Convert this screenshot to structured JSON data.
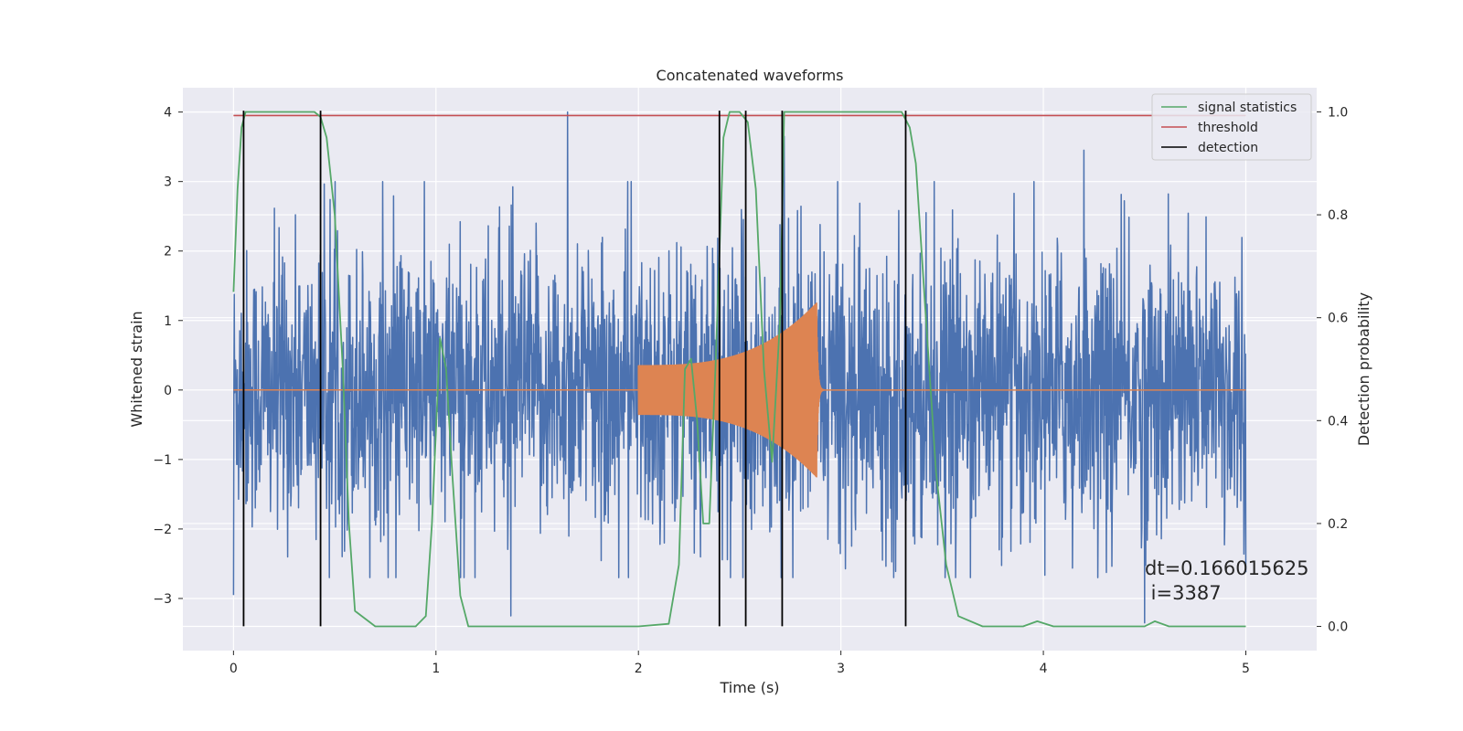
{
  "chart_data": {
    "type": "line",
    "title": "Concatenated waveforms",
    "xlabel": "Time (s)",
    "ylabel": "Whitened strain",
    "y2label": "Detection probability",
    "xlim": [
      -0.25,
      5.35
    ],
    "ylim": [
      -3.75,
      4.35
    ],
    "y2lim": [
      -0.047,
      1.047
    ],
    "xticks": [
      0,
      1,
      2,
      3,
      4,
      5
    ],
    "xtick_labels": [
      "0",
      "1",
      "2",
      "3",
      "4",
      "5"
    ],
    "yticks": [
      -3,
      -2,
      -1,
      0,
      1,
      2,
      3,
      4
    ],
    "ytick_labels": [
      "−3",
      "−2",
      "−1",
      "0",
      "1",
      "2",
      "3",
      "4"
    ],
    "y2ticks": [
      0.0,
      0.2,
      0.4,
      0.6,
      0.8,
      1.0
    ],
    "y2tick_labels": [
      "0.0",
      "0.2",
      "0.4",
      "0.6",
      "0.8",
      "1.0"
    ],
    "grid": true,
    "legend_position": "top-right",
    "colors": {
      "background": "#eaeaf2",
      "strain": "#4c72b0",
      "injection": "#dd8452",
      "signal_statistics": "#55a868",
      "threshold": "#c44e52",
      "detection": "#000000"
    },
    "series": [
      {
        "name": "signal statistics",
        "axis": "right",
        "color": "#55a868",
        "x": [
          0.0,
          0.02,
          0.04,
          0.06,
          0.08,
          0.1,
          0.2,
          0.3,
          0.4,
          0.43,
          0.46,
          0.5,
          0.54,
          0.57,
          0.6,
          0.7,
          0.9,
          0.95,
          0.98,
          1.02,
          1.05,
          1.08,
          1.12,
          1.16,
          1.2,
          1.4,
          1.6,
          1.8,
          2.0,
          2.15,
          2.2,
          2.23,
          2.26,
          2.29,
          2.32,
          2.35,
          2.38,
          2.42,
          2.45,
          2.5,
          2.54,
          2.58,
          2.62,
          2.66,
          2.7,
          2.72,
          2.78,
          3.0,
          3.2,
          3.3,
          3.34,
          3.37,
          3.42,
          3.47,
          3.52,
          3.58,
          3.7,
          3.9,
          3.97,
          4.05,
          4.2,
          4.4,
          4.5,
          4.55,
          4.62,
          4.8,
          5.0
        ],
        "y": [
          0.65,
          0.85,
          0.97,
          1.0,
          1.0,
          1.0,
          1.0,
          1.0,
          1.0,
          0.99,
          0.95,
          0.8,
          0.5,
          0.2,
          0.03,
          0.0,
          0.0,
          0.02,
          0.2,
          0.56,
          0.5,
          0.3,
          0.06,
          0.0,
          0.0,
          0.0,
          0.0,
          0.0,
          0.0,
          0.005,
          0.12,
          0.5,
          0.52,
          0.4,
          0.2,
          0.2,
          0.5,
          0.95,
          1.0,
          1.0,
          0.98,
          0.85,
          0.5,
          0.32,
          0.6,
          1.0,
          1.0,
          1.0,
          1.0,
          1.0,
          0.97,
          0.9,
          0.6,
          0.3,
          0.12,
          0.02,
          0.0,
          0.0,
          0.01,
          0.0,
          0.0,
          0.0,
          0.0,
          0.01,
          0.0,
          0.0,
          0.0
        ]
      },
      {
        "name": "threshold",
        "axis": "right",
        "color": "#c44e52",
        "x": [
          0.0,
          5.0
        ],
        "y": [
          0.993,
          0.993
        ]
      },
      {
        "name": "detection",
        "axis": "left",
        "color": "#000000",
        "x": [
          0.05,
          0.43,
          2.4,
          2.53,
          2.71,
          3.32
        ],
        "y_range": [
          -3.4,
          4.02
        ]
      },
      {
        "name": "",
        "axis": "left",
        "color": "#4c72b0",
        "description_x_range": [
          0,
          5
        ],
        "amplitude_typical": 1.8,
        "peaks": [
          {
            "x": 0.0,
            "y": -2.95
          },
          {
            "x": 1.65,
            "y": 4.0
          },
          {
            "x": 1.37,
            "y": -3.25
          },
          {
            "x": 4.5,
            "y": -3.35
          },
          {
            "x": 2.72,
            "y": 3.65
          },
          {
            "x": 4.2,
            "y": 3.45
          }
        ]
      },
      {
        "name": "",
        "axis": "left",
        "color": "#dd8452",
        "x_start": 2.0,
        "x_peak": 2.88,
        "x_end": 2.9,
        "amplitude_start": 0.35,
        "amplitude_peak": 1.25
      }
    ],
    "annotations": [
      {
        "text": "dt=0.166015625",
        "x": 4.5,
        "y": -2.55
      },
      {
        "text": " i=3387",
        "x": 4.5,
        "y": -2.9
      }
    ]
  }
}
